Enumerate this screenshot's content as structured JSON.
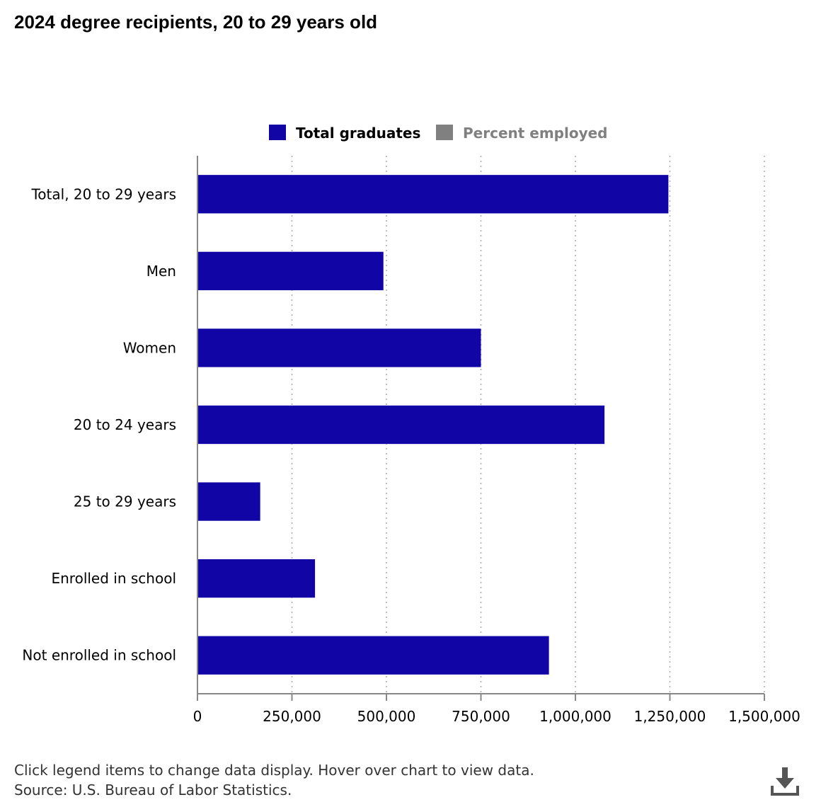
{
  "title": "2024 degree recipients, 20 to 29 years old",
  "footer": {
    "note": "Click legend items to change data display. Hover over chart to view data.",
    "source": "Source: U.S. Bureau of Labor Statistics."
  },
  "colors": {
    "total_graduates": "#1105a6",
    "percent_employed": "#808080",
    "axis": "#888888",
    "grid": "#aaaaaa"
  },
  "legend": [
    {
      "label": "Total graduates",
      "color": "#1105a6",
      "active": true
    },
    {
      "label": "Percent employed",
      "color": "#808080",
      "active": false
    }
  ],
  "chart_data": {
    "type": "bar",
    "orientation": "horizontal",
    "categories": [
      "Total, 20 to 29 years",
      "Men",
      "Women",
      "20 to 24 years",
      "25 to 29 years",
      "Enrolled in school",
      "Not enrolled in school"
    ],
    "series": [
      {
        "name": "Total graduates",
        "values": [
          1246000,
          492000,
          750000,
          1077000,
          166000,
          311000,
          930000
        ]
      }
    ],
    "xlim": [
      0,
      1500000
    ],
    "xticks": [
      0,
      250000,
      500000,
      750000,
      1000000,
      1250000,
      1500000
    ],
    "xtick_labels": [
      "0",
      "250,000",
      "500,000",
      "750,000",
      "1,000,000",
      "1,250,000",
      "1,500,000"
    ],
    "grid": "vertical dotted",
    "legend_position": "top"
  }
}
